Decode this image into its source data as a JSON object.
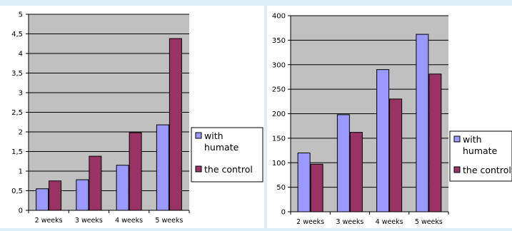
{
  "colors": {
    "background": "#ddeef8",
    "panel": "#ffffff",
    "plot_area": "#c0c0c0",
    "with_humate": "#9999ff",
    "the_control": "#993366",
    "axis": "#000000"
  },
  "chart_data": [
    {
      "type": "bar",
      "categories": [
        "2 weeks",
        "3 weeks",
        "4 weeks",
        "5 weeks"
      ],
      "ylim": [
        0,
        5
      ],
      "yticks": [
        0,
        0.5,
        1,
        1.5,
        2,
        2.5,
        3,
        3.5,
        4,
        4.5,
        5
      ],
      "ytick_labels": [
        "0",
        "0,5",
        "1",
        "1,5",
        "2",
        "2,5",
        "3",
        "3,5",
        "4",
        "4,5",
        "5"
      ],
      "grid": true,
      "legend_position": "right",
      "series": [
        {
          "name": "with humate",
          "values": [
            0.55,
            0.78,
            1.15,
            2.18
          ]
        },
        {
          "name": "the control",
          "values": [
            0.75,
            1.38,
            1.98,
            4.38
          ]
        }
      ]
    },
    {
      "type": "bar",
      "categories": [
        "2 weeks",
        "3 weeks",
        "4 weeks",
        "5 weeks"
      ],
      "ylim": [
        0,
        400
      ],
      "yticks": [
        0,
        50,
        100,
        150,
        200,
        250,
        300,
        350,
        400
      ],
      "ytick_labels": [
        "0",
        "50",
        "100",
        "150",
        "200",
        "250",
        "300",
        "350",
        "400"
      ],
      "grid": true,
      "legend_position": "right",
      "series": [
        {
          "name": "with humate",
          "values": [
            120,
            198,
            290,
            362
          ]
        },
        {
          "name": "the control",
          "values": [
            97,
            162,
            230,
            281
          ]
        }
      ]
    }
  ]
}
